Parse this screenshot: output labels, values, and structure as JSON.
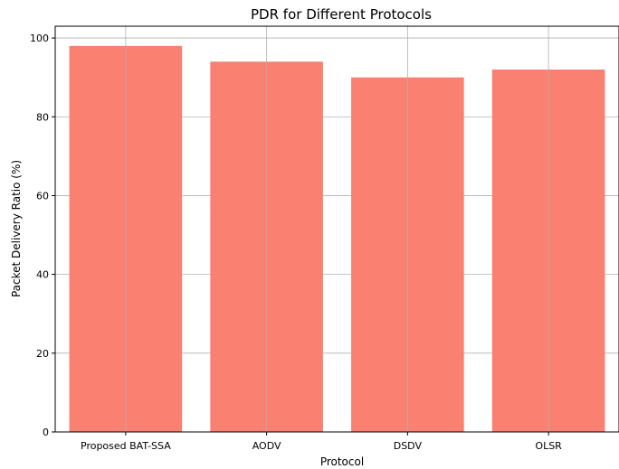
{
  "chart_data": {
    "type": "bar",
    "title": "PDR for Different Protocols",
    "xlabel": "Protocol",
    "ylabel": "Packet Delivery Ratio (%)",
    "categories": [
      "Proposed BAT-SSA",
      "AODV",
      "DSDV",
      "OLSR"
    ],
    "values": [
      98,
      94,
      90,
      92
    ],
    "ylim": [
      0,
      103
    ],
    "yticks": [
      0,
      20,
      40,
      60,
      80,
      100
    ],
    "grid": true,
    "bar_color": "#FA8072"
  }
}
